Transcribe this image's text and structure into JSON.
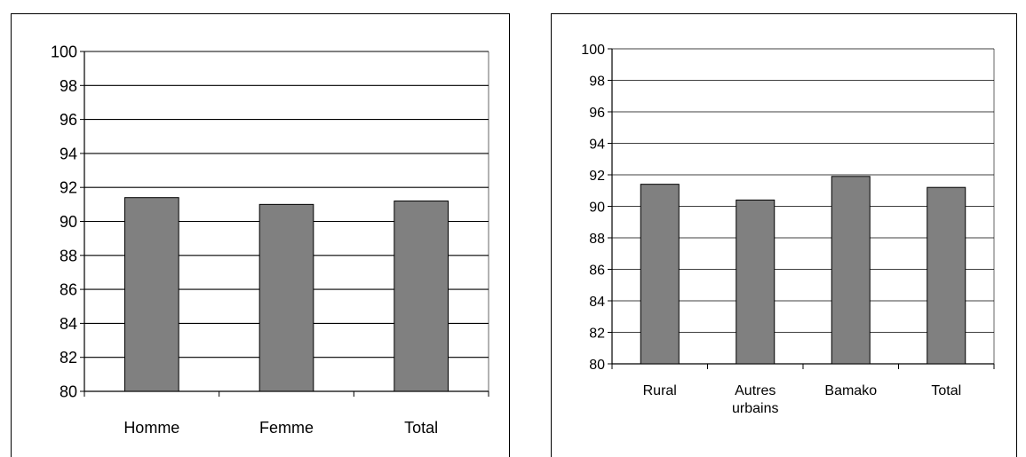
{
  "chart_data": [
    {
      "type": "bar",
      "categories": [
        "Homme",
        "Femme",
        "Total"
      ],
      "values": [
        91.4,
        91.0,
        91.2
      ],
      "ylim": [
        80,
        100
      ],
      "yticks": [
        80,
        82,
        84,
        86,
        88,
        90,
        92,
        94,
        96,
        98,
        100
      ],
      "grid": true,
      "bar_color": "#808080",
      "title": "",
      "xlabel": "",
      "ylabel": ""
    },
    {
      "type": "bar",
      "categories": [
        "Rural",
        "Autres urbains",
        "Bamako",
        "Total"
      ],
      "category_lines": [
        [
          "Rural"
        ],
        [
          "Autres",
          "urbains"
        ],
        [
          "Bamako"
        ],
        [
          "Total"
        ]
      ],
      "values": [
        91.4,
        90.4,
        91.9,
        91.2
      ],
      "ylim": [
        80,
        100
      ],
      "yticks": [
        80,
        82,
        84,
        86,
        88,
        90,
        92,
        94,
        96,
        98,
        100
      ],
      "grid": true,
      "bar_color": "#808080",
      "title": "",
      "xlabel": "",
      "ylabel": ""
    }
  ]
}
